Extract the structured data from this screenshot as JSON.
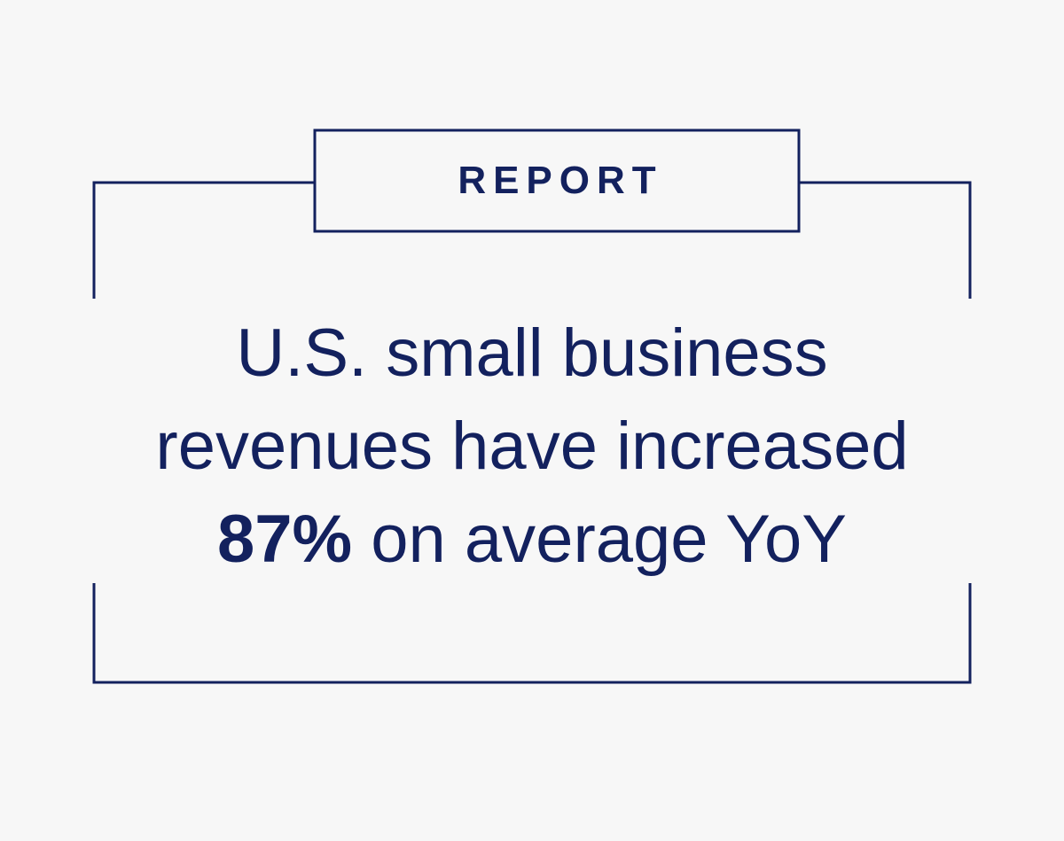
{
  "label": "REPORT",
  "headline": {
    "line1": "U.S. small business",
    "line2": "revenues have increased",
    "stat": "87%",
    "line3_rest": " on average YoY"
  },
  "colors": {
    "ink": "#13215e",
    "background": "#f7f7f7"
  }
}
